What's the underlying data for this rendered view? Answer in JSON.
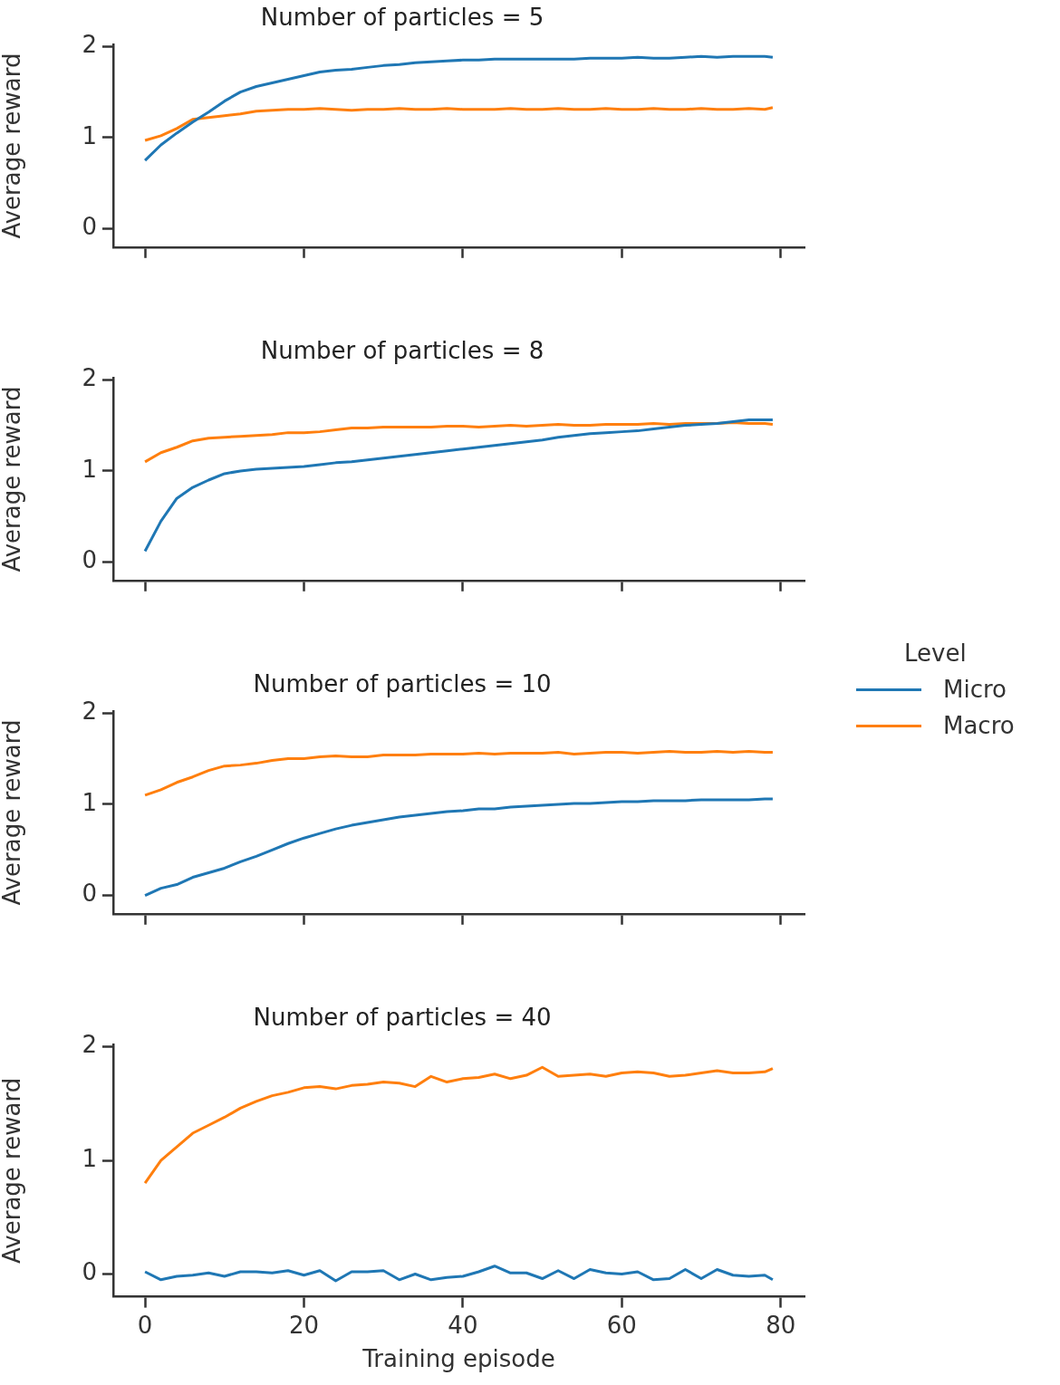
{
  "chart_data": [
    {
      "type": "line",
      "title": "Number of particles = 5",
      "ylabel": "Average reward",
      "x": [
        0,
        2,
        4,
        6,
        8,
        10,
        12,
        14,
        16,
        18,
        20,
        22,
        24,
        26,
        28,
        30,
        32,
        34,
        36,
        38,
        40,
        42,
        44,
        46,
        48,
        50,
        52,
        54,
        56,
        58,
        60,
        62,
        64,
        66,
        68,
        70,
        72,
        74,
        76,
        78,
        79
      ],
      "xlim": [
        -4,
        83
      ],
      "xticks": [
        0,
        20,
        40,
        60,
        80
      ],
      "ylim": [
        -0.2,
        2.02
      ],
      "yticks": [
        0,
        1,
        2
      ],
      "tick_labels": "y",
      "grid": false,
      "legend": false,
      "marker": "none",
      "line_style": "solid",
      "series": [
        {
          "color": "#1f77b4",
          "values": [
            0.75,
            0.92,
            1.05,
            1.17,
            1.28,
            1.4,
            1.5,
            1.56,
            1.6,
            1.64,
            1.68,
            1.72,
            1.74,
            1.75,
            1.77,
            1.79,
            1.8,
            1.82,
            1.83,
            1.84,
            1.85,
            1.85,
            1.86,
            1.86,
            1.86,
            1.86,
            1.86,
            1.86,
            1.87,
            1.87,
            1.87,
            1.88,
            1.87,
            1.87,
            1.88,
            1.89,
            1.88,
            1.89,
            1.89,
            1.89,
            1.88
          ]
        },
        {
          "color": "#ff7f0e",
          "values": [
            0.97,
            1.02,
            1.1,
            1.2,
            1.22,
            1.24,
            1.26,
            1.29,
            1.3,
            1.31,
            1.31,
            1.32,
            1.31,
            1.3,
            1.31,
            1.31,
            1.32,
            1.31,
            1.31,
            1.32,
            1.31,
            1.31,
            1.31,
            1.32,
            1.31,
            1.31,
            1.32,
            1.31,
            1.31,
            1.32,
            1.31,
            1.31,
            1.32,
            1.31,
            1.31,
            1.32,
            1.31,
            1.31,
            1.32,
            1.31,
            1.33
          ]
        }
      ]
    },
    {
      "type": "line",
      "title": "Number of particles = 8",
      "ylabel": "Average reward",
      "x": [
        0,
        2,
        4,
        6,
        8,
        10,
        12,
        14,
        16,
        18,
        20,
        22,
        24,
        26,
        28,
        30,
        32,
        34,
        36,
        38,
        40,
        42,
        44,
        46,
        48,
        50,
        52,
        54,
        56,
        58,
        60,
        62,
        64,
        66,
        68,
        70,
        72,
        74,
        76,
        78,
        79
      ],
      "xlim": [
        -4,
        83
      ],
      "xticks": [
        0,
        20,
        40,
        60,
        80
      ],
      "ylim": [
        -0.2,
        2.02
      ],
      "yticks": [
        0,
        1,
        2
      ],
      "tick_labels": "y",
      "grid": false,
      "legend": false,
      "marker": "none",
      "line_style": "solid",
      "series": [
        {
          "color": "#1f77b4",
          "values": [
            0.12,
            0.45,
            0.7,
            0.82,
            0.9,
            0.97,
            1.0,
            1.02,
            1.03,
            1.04,
            1.05,
            1.07,
            1.09,
            1.1,
            1.12,
            1.14,
            1.16,
            1.18,
            1.2,
            1.22,
            1.24,
            1.26,
            1.28,
            1.3,
            1.32,
            1.34,
            1.37,
            1.39,
            1.41,
            1.42,
            1.43,
            1.44,
            1.46,
            1.48,
            1.5,
            1.51,
            1.52,
            1.54,
            1.56,
            1.56,
            1.56
          ]
        },
        {
          "color": "#ff7f0e",
          "values": [
            1.1,
            1.2,
            1.26,
            1.33,
            1.36,
            1.37,
            1.38,
            1.39,
            1.4,
            1.42,
            1.42,
            1.43,
            1.45,
            1.47,
            1.47,
            1.48,
            1.48,
            1.48,
            1.48,
            1.49,
            1.49,
            1.48,
            1.49,
            1.5,
            1.49,
            1.5,
            1.51,
            1.5,
            1.5,
            1.51,
            1.51,
            1.51,
            1.52,
            1.51,
            1.52,
            1.52,
            1.52,
            1.53,
            1.52,
            1.52,
            1.51
          ]
        }
      ]
    },
    {
      "type": "line",
      "title": "Number of particles = 10",
      "ylabel": "Average reward",
      "legend_title": "Level",
      "x": [
        0,
        2,
        4,
        6,
        8,
        10,
        12,
        14,
        16,
        18,
        20,
        22,
        24,
        26,
        28,
        30,
        32,
        34,
        36,
        38,
        40,
        42,
        44,
        46,
        48,
        50,
        52,
        54,
        56,
        58,
        60,
        62,
        64,
        66,
        68,
        70,
        72,
        74,
        76,
        78,
        79
      ],
      "xlim": [
        -4,
        83
      ],
      "xticks": [
        0,
        20,
        40,
        60,
        80
      ],
      "ylim": [
        -0.2,
        2.02
      ],
      "yticks": [
        0,
        1,
        2
      ],
      "tick_labels": "y",
      "grid": false,
      "legend": "right",
      "marker": "none",
      "line_style": "solid",
      "series": [
        {
          "name": "Micro",
          "color": "#1f77b4",
          "values": [
            0.0,
            0.08,
            0.12,
            0.2,
            0.25,
            0.3,
            0.37,
            0.43,
            0.5,
            0.57,
            0.63,
            0.68,
            0.73,
            0.77,
            0.8,
            0.83,
            0.86,
            0.88,
            0.9,
            0.92,
            0.93,
            0.95,
            0.95,
            0.97,
            0.98,
            0.99,
            1.0,
            1.01,
            1.01,
            1.02,
            1.03,
            1.03,
            1.04,
            1.04,
            1.04,
            1.05,
            1.05,
            1.05,
            1.05,
            1.06,
            1.06
          ]
        },
        {
          "name": "Macro",
          "color": "#ff7f0e",
          "values": [
            1.1,
            1.16,
            1.24,
            1.3,
            1.37,
            1.42,
            1.43,
            1.45,
            1.48,
            1.5,
            1.5,
            1.52,
            1.53,
            1.52,
            1.52,
            1.54,
            1.54,
            1.54,
            1.55,
            1.55,
            1.55,
            1.56,
            1.55,
            1.56,
            1.56,
            1.56,
            1.57,
            1.55,
            1.56,
            1.57,
            1.57,
            1.56,
            1.57,
            1.58,
            1.57,
            1.57,
            1.58,
            1.57,
            1.58,
            1.57,
            1.57
          ]
        }
      ]
    },
    {
      "type": "line",
      "title": "Number of particles = 40",
      "ylabel": "Average reward",
      "xlabel": "Training episode",
      "x": [
        0,
        2,
        4,
        6,
        8,
        10,
        12,
        14,
        16,
        18,
        20,
        22,
        24,
        26,
        28,
        30,
        32,
        34,
        36,
        38,
        40,
        42,
        44,
        46,
        48,
        50,
        52,
        54,
        56,
        58,
        60,
        62,
        64,
        66,
        68,
        70,
        72,
        74,
        76,
        78,
        79
      ],
      "xlim": [
        -4,
        83
      ],
      "xticks": [
        0,
        20,
        40,
        60,
        80
      ],
      "ylim": [
        -0.2,
        2.02
      ],
      "yticks": [
        0,
        1,
        2
      ],
      "grid": false,
      "legend": false,
      "marker": "none",
      "line_style": "solid",
      "series": [
        {
          "color": "#1f77b4",
          "values": [
            0.02,
            -0.05,
            -0.02,
            -0.01,
            0.01,
            -0.02,
            0.02,
            0.02,
            0.01,
            0.03,
            -0.01,
            0.03,
            -0.06,
            0.02,
            0.02,
            0.03,
            -0.05,
            0.0,
            -0.05,
            -0.03,
            -0.02,
            0.02,
            0.07,
            0.01,
            0.01,
            -0.04,
            0.03,
            -0.04,
            0.04,
            0.01,
            0.0,
            0.02,
            -0.05,
            -0.04,
            0.04,
            -0.04,
            0.04,
            -0.01,
            -0.02,
            -0.01,
            -0.05
          ]
        },
        {
          "color": "#ff7f0e",
          "values": [
            0.8,
            1.0,
            1.12,
            1.24,
            1.31,
            1.38,
            1.46,
            1.52,
            1.57,
            1.6,
            1.64,
            1.65,
            1.63,
            1.66,
            1.67,
            1.69,
            1.68,
            1.65,
            1.74,
            1.69,
            1.72,
            1.73,
            1.76,
            1.72,
            1.75,
            1.82,
            1.74,
            1.75,
            1.76,
            1.74,
            1.77,
            1.78,
            1.77,
            1.74,
            1.75,
            1.77,
            1.79,
            1.77,
            1.77,
            1.78,
            1.81
          ]
        }
      ]
    }
  ]
}
